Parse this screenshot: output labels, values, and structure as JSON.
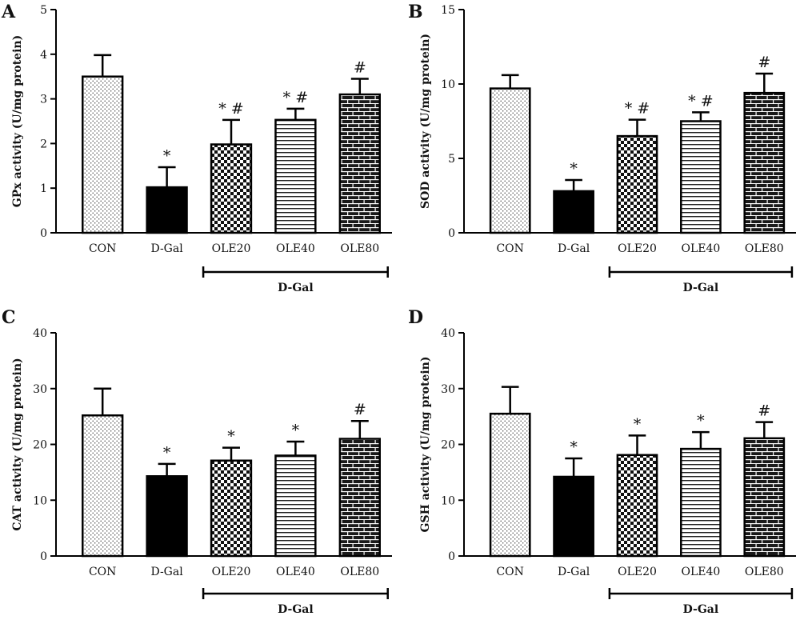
{
  "figure": {
    "group_label": "D-Gal",
    "group_members": [
      "OLE20",
      "OLE40",
      "OLE80"
    ]
  },
  "patterns": {
    "CON": "dots",
    "D-Gal": "solid-black",
    "OLE20": "checker",
    "OLE40": "horizontal-lines",
    "OLE80": "brick"
  },
  "chart_data": [
    {
      "panel": "A",
      "type": "bar",
      "categories": [
        "CON",
        "D-Gal",
        "OLE20",
        "OLE40",
        "OLE80"
      ],
      "values": [
        3.5,
        1.02,
        1.98,
        2.53,
        3.1
      ],
      "errors": [
        0.48,
        0.45,
        0.55,
        0.25,
        0.35
      ],
      "annotations": [
        "",
        "*",
        "* #",
        "* #",
        "#"
      ],
      "ylabel": "GPx activity (U/mg protein)",
      "ylim": [
        0,
        5
      ],
      "yticks": [
        0,
        1,
        2,
        3,
        4,
        5
      ],
      "grid": false,
      "legend": "none"
    },
    {
      "panel": "B",
      "type": "bar",
      "categories": [
        "CON",
        "D-Gal",
        "OLE20",
        "OLE40",
        "OLE80"
      ],
      "values": [
        9.7,
        2.8,
        6.5,
        7.5,
        9.4
      ],
      "errors": [
        0.9,
        0.75,
        1.1,
        0.6,
        1.3
      ],
      "annotations": [
        "",
        "*",
        "* #",
        "* #",
        "#"
      ],
      "ylabel": "SOD activity (U/mg protein)",
      "ylim": [
        0,
        15
      ],
      "yticks": [
        0,
        5,
        10,
        15
      ],
      "grid": false,
      "legend": "none"
    },
    {
      "panel": "C",
      "type": "bar",
      "categories": [
        "CON",
        "D-Gal",
        "OLE20",
        "OLE40",
        "OLE80"
      ],
      "values": [
        25.2,
        14.3,
        17.1,
        18.0,
        21.0
      ],
      "errors": [
        4.8,
        2.2,
        2.3,
        2.5,
        3.2
      ],
      "annotations": [
        "",
        "*",
        "*",
        "*",
        "#"
      ],
      "ylabel": "CAT activity (U/mg protein)",
      "ylim": [
        0,
        40
      ],
      "yticks": [
        0,
        10,
        20,
        30,
        40
      ],
      "grid": false,
      "legend": "none"
    },
    {
      "panel": "D",
      "type": "bar",
      "categories": [
        "CON",
        "D-Gal",
        "OLE20",
        "OLE40",
        "OLE80"
      ],
      "values": [
        25.5,
        14.2,
        18.1,
        19.2,
        21.1
      ],
      "errors": [
        4.8,
        3.3,
        3.5,
        3.0,
        2.9
      ],
      "annotations": [
        "",
        "*",
        "*",
        "*",
        "#"
      ],
      "ylabel": "GSH activity (U/mg protein)",
      "ylim": [
        0,
        40
      ],
      "yticks": [
        0,
        10,
        20,
        30,
        40
      ],
      "grid": false,
      "legend": "none"
    }
  ]
}
